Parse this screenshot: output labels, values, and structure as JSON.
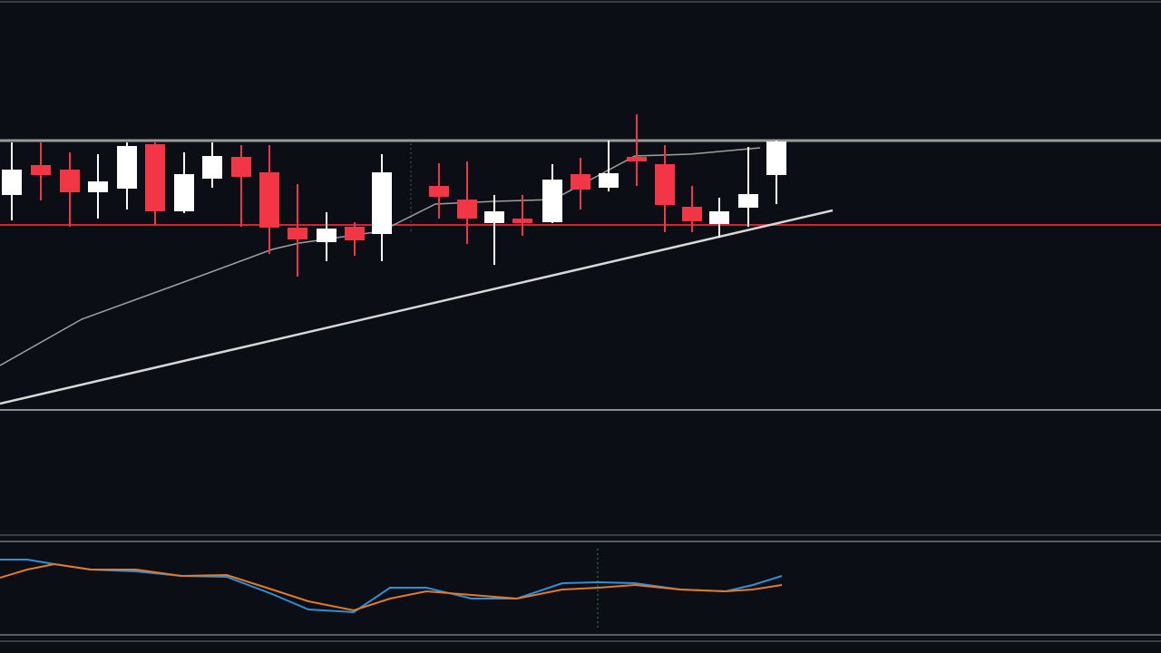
{
  "chart_data": [
    {
      "type": "candlestick",
      "x": [
        13,
        45,
        77,
        108,
        140,
        171,
        203,
        234,
        266,
        297,
        328,
        360,
        391,
        421,
        484,
        515,
        545,
        576,
        609,
        640,
        671,
        702,
        733,
        763,
        793,
        825,
        856
      ],
      "open": [
        235,
        268,
        263,
        238,
        242,
        291,
        217,
        253,
        277,
        260,
        199,
        183,
        200,
        192,
        245,
        230,
        204,
        209,
        205,
        258,
        243,
        277,
        269,
        222,
        203,
        221,
        257
      ],
      "high": [
        293,
        293,
        282,
        280,
        293,
        293,
        282,
        293,
        290,
        290,
        247,
        216,
        205,
        280,
        270,
        272,
        235,
        235,
        269,
        276,
        295,
        324,
        290,
        245,
        232,
        288,
        295
      ],
      "low": [
        207,
        229,
        200,
        209,
        219,
        202,
        215,
        243,
        200,
        170,
        145,
        162,
        168,
        162,
        209,
        181,
        158,
        190,
        204,
        219,
        239,
        245,
        194,
        194,
        188,
        200,
        225
      ],
      "close": [
        263,
        257,
        238,
        250,
        289,
        217,
        258,
        278,
        255,
        199,
        186,
        198,
        185,
        260,
        233,
        209,
        217,
        204,
        252,
        241,
        259,
        272,
        224,
        206,
        217,
        236,
        294
      ],
      "up_color": "#ffffff",
      "down_color": "#f23645",
      "xlim": [
        0,
        1280
      ],
      "ylim": [
        0,
        445
      ],
      "levels": [
        {
          "value": 295,
          "color": "#9a9a9a"
        },
        {
          "value": 202,
          "color": "#d3262c"
        }
      ],
      "overlays": [
        {
          "x": [
            0,
            918
          ],
          "values": [
            5,
            218
          ],
          "color": "#d8d8d8",
          "width": 2.5
        },
        {
          "x": [
            0,
            90,
            200,
            300,
            330,
            420,
            480,
            545,
            610,
            700,
            760,
            838
          ],
          "values": [
            47,
            98,
            138,
            175,
            182,
            195,
            225,
            228,
            230,
            278,
            280,
            287
          ],
          "color": "#a0a0a0",
          "width": 1.5
        }
      ]
    },
    {
      "type": "line",
      "x": [
        0,
        30,
        60,
        100,
        150,
        200,
        250,
        300,
        340,
        390,
        430,
        470,
        520,
        570,
        620,
        660,
        700,
        750,
        800,
        830,
        862
      ],
      "series": [
        {
          "color": "#2f8fd8",
          "values": [
            83,
            83,
            78,
            72,
            70,
            65,
            64,
            45,
            28,
            25,
            52,
            52,
            40,
            40,
            57,
            58,
            57,
            50,
            48,
            55,
            65
          ]
        },
        {
          "color": "#e07a2a",
          "values": [
            63,
            72,
            78,
            72,
            72,
            65,
            66,
            50,
            37,
            27,
            40,
            48,
            44,
            40,
            50,
            52,
            55,
            50,
            48,
            50,
            55
          ]
        }
      ],
      "xlim": [
        0,
        1280
      ],
      "ylim": [
        0,
        100
      ]
    }
  ]
}
